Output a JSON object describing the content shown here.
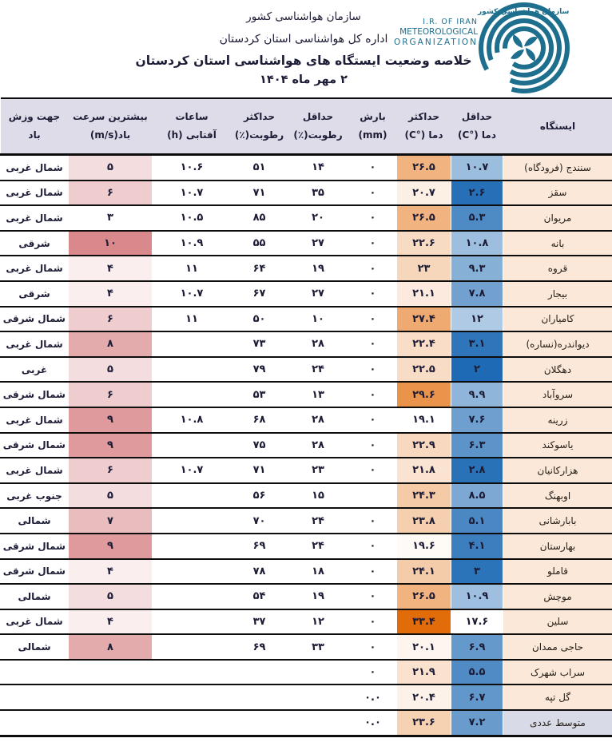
{
  "header": {
    "org_line": "سازمان هواشناسی کشور",
    "dept_line": "اداره کل هواشناسی استان کردستان",
    "title": "خلاصه وضعیت ایستگاه های هواشناسی استان کردستان",
    "date_line": "۲ مهر ماه ۱۴۰۴"
  },
  "logo": {
    "fa_line": "سازمان هواشناسي كشور",
    "en_line1": "I.R. OF IRAN",
    "en_line2": "METEOROLOGICAL",
    "en_line3": "ORGANIZATION",
    "color": "#1E6F8E"
  },
  "table": {
    "columns": [
      {
        "id": "station",
        "lines": [
          "ایستگاه"
        ]
      },
      {
        "id": "tmin",
        "lines": [
          "حداقل",
          "دما (°C)"
        ]
      },
      {
        "id": "tmax",
        "lines": [
          "حداکثر",
          "دما (°C)"
        ]
      },
      {
        "id": "precip",
        "lines": [
          "بارش",
          "(mm)"
        ]
      },
      {
        "id": "rhmin",
        "lines": [
          "حداقل",
          "رطوبت(٪)"
        ]
      },
      {
        "id": "rhmax",
        "lines": [
          "حداکثر",
          "رطوبت(٪)"
        ]
      },
      {
        "id": "sun",
        "lines": [
          "ساعات",
          "آفتابی (h)"
        ]
      },
      {
        "id": "wind",
        "lines": [
          "بیشترین سرعت",
          "باد(m/s)"
        ]
      },
      {
        "id": "dir",
        "lines": [
          "جهت وزش",
          "باد"
        ]
      }
    ],
    "rows": [
      {
        "station": "سنندج (فرودگاه)",
        "tmin": "۱۰.۷",
        "tmax": "۲۶.۵",
        "precip": "۰",
        "rhmin": "۱۴",
        "rhmax": "۵۱",
        "sun": "۱۰.۶",
        "wind": "۵",
        "dir": "شمال غربی"
      },
      {
        "station": "سقز",
        "tmin": "۲.۶",
        "tmax": "۲۰.۷",
        "precip": "۰",
        "rhmin": "۳۵",
        "rhmax": "۷۱",
        "sun": "۱۰.۷",
        "wind": "۶",
        "dir": "شمال غربی"
      },
      {
        "station": "مریوان",
        "tmin": "۵.۳",
        "tmax": "۲۶.۵",
        "precip": "۰",
        "rhmin": "۲۰",
        "rhmax": "۸۵",
        "sun": "۱۰.۵",
        "wind": "۳",
        "dir": "شمال غربی"
      },
      {
        "station": "بانه",
        "tmin": "۱۰.۸",
        "tmax": "۲۲.۶",
        "precip": "۰",
        "rhmin": "۲۷",
        "rhmax": "۵۵",
        "sun": "۱۰.۹",
        "wind": "۱۰",
        "dir": "شرقی"
      },
      {
        "station": "قروه",
        "tmin": "۹.۳",
        "tmax": "۲۳",
        "precip": "۰",
        "rhmin": "۱۹",
        "rhmax": "۶۴",
        "sun": "۱۱",
        "wind": "۴",
        "dir": "شمال غربی"
      },
      {
        "station": "بیجار",
        "tmin": "۷.۸",
        "tmax": "۲۱.۱",
        "precip": "۰",
        "rhmin": "۲۷",
        "rhmax": "۶۷",
        "sun": "۱۰.۷",
        "wind": "۴",
        "dir": "شرقی"
      },
      {
        "station": "کامیاران",
        "tmin": "۱۲",
        "tmax": "۲۷.۴",
        "precip": "۰",
        "rhmin": "۱۰",
        "rhmax": "۵۰",
        "sun": "۱۱",
        "wind": "۶",
        "dir": "شمال شرقی"
      },
      {
        "station": "دیواندره(نساره)",
        "tmin": "۳.۱",
        "tmax": "۲۲.۴",
        "precip": "۰",
        "rhmin": "۲۸",
        "rhmax": "۷۳",
        "sun": "",
        "wind": "۸",
        "dir": "شمال غربی"
      },
      {
        "station": "دهگلان",
        "tmin": "۲",
        "tmax": "۲۲.۵",
        "precip": "۰",
        "rhmin": "۲۴",
        "rhmax": "۷۹",
        "sun": "",
        "wind": "۵",
        "dir": "غربی"
      },
      {
        "station": "سروآباد",
        "tmin": "۹.۹",
        "tmax": "۲۹.۶",
        "precip": "۰",
        "rhmin": "۱۳",
        "rhmax": "۵۳",
        "sun": "",
        "wind": "۶",
        "dir": "شمال شرقی"
      },
      {
        "station": "زرینه",
        "tmin": "۷.۶",
        "tmax": "۱۹.۱",
        "precip": "۰",
        "rhmin": "۲۸",
        "rhmax": "۶۸",
        "sun": "۱۰.۸",
        "wind": "۹",
        "dir": "شمال غربی"
      },
      {
        "station": "یاسوکند",
        "tmin": "۶.۳",
        "tmax": "۲۲.۹",
        "precip": "۰",
        "rhmin": "۲۸",
        "rhmax": "۷۵",
        "sun": "",
        "wind": "۹",
        "dir": "شمال شرقی"
      },
      {
        "station": "هزارکانیان",
        "tmin": "۲.۸",
        "tmax": "۲۱.۸",
        "precip": "۰",
        "rhmin": "۲۳",
        "rhmax": "۷۱",
        "sun": "۱۰.۷",
        "wind": "۶",
        "dir": "شمال غربی"
      },
      {
        "station": "اوبهنگ",
        "tmin": "۸.۵",
        "tmax": "۲۴.۳",
        "precip": "",
        "rhmin": "۱۵",
        "rhmax": "۵۶",
        "sun": "",
        "wind": "۵",
        "dir": "جنوب غربی"
      },
      {
        "station": "بابارشانی",
        "tmin": "۵.۱",
        "tmax": "۲۳.۸",
        "precip": "۰",
        "rhmin": "۲۴",
        "rhmax": "۷۰",
        "sun": "",
        "wind": "۷",
        "dir": "شمالی"
      },
      {
        "station": "بهارستان",
        "tmin": "۴.۱",
        "tmax": "۱۹.۶",
        "precip": "۰",
        "rhmin": "۲۴",
        "rhmax": "۶۹",
        "sun": "",
        "wind": "۹",
        "dir": "شمال شرقی"
      },
      {
        "station": "قاملو",
        "tmin": "۳",
        "tmax": "۲۴.۱",
        "precip": "۰",
        "rhmin": "۱۸",
        "rhmax": "۷۸",
        "sun": "",
        "wind": "۴",
        "dir": "شمال شرقی"
      },
      {
        "station": "موچش",
        "tmin": "۱۰.۹",
        "tmax": "۲۶.۵",
        "precip": "۰",
        "rhmin": "۱۹",
        "rhmax": "۵۴",
        "sun": "",
        "wind": "۵",
        "dir": "شمالی"
      },
      {
        "station": "سلین",
        "tmin": "۱۷.۶",
        "tmax": "۳۳.۴",
        "precip": "۰",
        "rhmin": "۱۲",
        "rhmax": "۳۷",
        "sun": "",
        "wind": "۴",
        "dir": "شمال غربی"
      },
      {
        "station": "حاجی ممدان",
        "tmin": "۶.۹",
        "tmax": "۲۰.۱",
        "precip": "۰",
        "rhmin": "۳۳",
        "rhmax": "۶۹",
        "sun": "",
        "wind": "۸",
        "dir": "شمالی"
      },
      {
        "station": "سراب شهرک",
        "tmin": "۵.۵",
        "tmax": "۲۱.۹",
        "precip": "۰",
        "rhmin": "",
        "rhmax": "",
        "sun": "",
        "wind": "",
        "dir": ""
      },
      {
        "station": "گل تپه",
        "tmin": "۶.۷",
        "tmax": "۲۰.۴",
        "precip": "۰.۰",
        "rhmin": "",
        "rhmax": "",
        "sun": "",
        "wind": "",
        "dir": ""
      },
      {
        "station": "متوسط عددی",
        "tmin": "۷.۲",
        "tmax": "۲۳.۶",
        "precip": "۰.۰",
        "rhmin": "",
        "rhmax": "",
        "sun": "",
        "wind": "",
        "dir": ""
      }
    ],
    "avg_row_label": "متوسط عددی",
    "scales": {
      "tmin": {
        "dark_at": 2,
        "white_at": 17.6,
        "color": "#1E6AB4"
      },
      "tmax": {
        "dark_at": 33.4,
        "white_at": 19.1,
        "color": "#E36C0A"
      },
      "wind": {
        "dark_at": 10,
        "white_at": 3,
        "color": "#D9898C"
      }
    },
    "colors": {
      "header_bg": "#DDDCE8",
      "station_bg": "#FBE8D8",
      "avg_station_bg": "#D8DAE8",
      "border": "#0d0d0d"
    }
  }
}
